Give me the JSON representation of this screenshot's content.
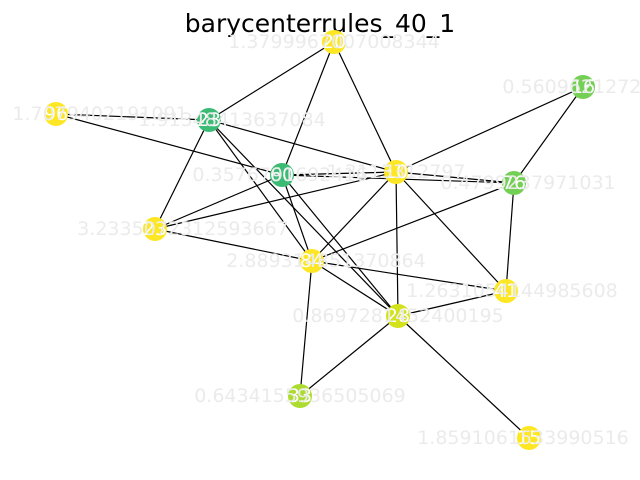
{
  "title": "barycenterrules_40_1",
  "colors": {
    "edge": "#000000",
    "node_label": "#ffffff",
    "value_label": "#ebebeb",
    "yellow": "#fde725",
    "yellow_green": "#d2e21b",
    "light_green": "#addc30",
    "green": "#73d055",
    "teal_green": "#3cbb75"
  },
  "nodes": [
    {
      "id": "20",
      "label": "20",
      "value_label": "1.3799967007008344",
      "color": "#fde725"
    },
    {
      "id": "16",
      "label": "16",
      "value_label": "0.5609621272249",
      "color": "#73d055"
    },
    {
      "id": "96",
      "label": "96",
      "value_label": "1.7079402191091",
      "color": "#fde725"
    },
    {
      "id": "23a",
      "label": "23",
      "value_label": "1.91348413637084",
      "color": "#3cbb75"
    },
    {
      "id": "60",
      "label": "60",
      "value_label": "0.3576791692416",
      "color": "#3cbb75"
    },
    {
      "id": "10",
      "label": "10",
      "value_label": "1.3113312797",
      "color": "#fde725"
    },
    {
      "id": "76",
      "label": "76",
      "value_label": "0.4799237971031",
      "color": "#73d055"
    },
    {
      "id": "23b",
      "label": "23",
      "value_label": "3.2335072312593667",
      "color": "#fde725"
    },
    {
      "id": "84",
      "label": "84",
      "value_label": "2.889314851370864",
      "color": "#fde725"
    },
    {
      "id": "41",
      "label": "41",
      "value_label": "1.2631054144985608",
      "color": "#fde725"
    },
    {
      "id": "28",
      "label": "28",
      "value_label": "0.8697281452400195",
      "color": "#d2e21b"
    },
    {
      "id": "33",
      "label": "33",
      "value_label": "0.6434155936505069",
      "color": "#addc30"
    },
    {
      "id": "15",
      "label": "15",
      "value_label": "1.8591061533990516",
      "color": "#fde725"
    }
  ],
  "edges": [
    [
      "20",
      "23a"
    ],
    [
      "20",
      "60"
    ],
    [
      "20",
      "10"
    ],
    [
      "96",
      "23a"
    ],
    [
      "96",
      "60"
    ],
    [
      "23a",
      "10"
    ],
    [
      "23a",
      "23b"
    ],
    [
      "23a",
      "84"
    ],
    [
      "23a",
      "28"
    ],
    [
      "60",
      "10"
    ],
    [
      "60",
      "76"
    ],
    [
      "60",
      "23b"
    ],
    [
      "60",
      "84"
    ],
    [
      "60",
      "28"
    ],
    [
      "10",
      "76"
    ],
    [
      "10",
      "16"
    ],
    [
      "10",
      "23b"
    ],
    [
      "10",
      "84"
    ],
    [
      "10",
      "28"
    ],
    [
      "10",
      "41"
    ],
    [
      "16",
      "76"
    ],
    [
      "76",
      "84"
    ],
    [
      "76",
      "41"
    ],
    [
      "23b",
      "84"
    ],
    [
      "84",
      "41"
    ],
    [
      "84",
      "28"
    ],
    [
      "84",
      "33"
    ],
    [
      "28",
      "41"
    ],
    [
      "28",
      "33"
    ],
    [
      "28",
      "15"
    ]
  ]
}
